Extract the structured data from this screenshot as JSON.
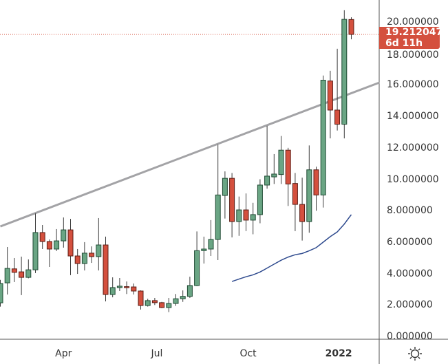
{
  "chart_data": {
    "type": "candlestick",
    "title": "",
    "y_axis": {
      "ticks": [
        "20.000000",
        "18.000000",
        "16.000000",
        "14.000000",
        "12.000000",
        "10.000000",
        "8.000000",
        "6.000000",
        "4.000000",
        "2.000000",
        "0.000000"
      ],
      "tick_values": [
        20,
        18,
        16,
        14,
        12,
        10,
        8,
        6,
        4,
        2,
        0
      ],
      "range": [
        0,
        20.2
      ]
    },
    "x_axis": {
      "labels": [
        {
          "text": "Apr",
          "index": 9
        },
        {
          "text": "Jul",
          "index": 22.3
        },
        {
          "text": "Oct",
          "index": 35.3
        },
        {
          "text": "2022",
          "index": 48.2
        }
      ]
    },
    "candles": [
      {
        "o": 2.14,
        "h": 3.6,
        "l": 1.9,
        "c": 3.37
      },
      {
        "o": 3.41,
        "h": 5.69,
        "l": 2.67,
        "c": 4.33
      },
      {
        "o": 4.3,
        "h": 4.99,
        "l": 3.46,
        "c": 4.08
      },
      {
        "o": 4.11,
        "h": 5.08,
        "l": 2.63,
        "c": 3.76
      },
      {
        "o": 3.76,
        "h": 4.9,
        "l": 3.7,
        "c": 4.24
      },
      {
        "o": 4.24,
        "h": 7.83,
        "l": 4.03,
        "c": 6.61
      },
      {
        "o": 6.61,
        "h": 7.09,
        "l": 5.56,
        "c": 6.04
      },
      {
        "o": 6.04,
        "h": 6.17,
        "l": 4.42,
        "c": 5.56
      },
      {
        "o": 5.56,
        "h": 6.83,
        "l": 5.43,
        "c": 6.08
      },
      {
        "o": 6.08,
        "h": 7.57,
        "l": 5.65,
        "c": 6.78
      },
      {
        "o": 6.78,
        "h": 7.48,
        "l": 3.9,
        "c": 5.12
      },
      {
        "o": 5.12,
        "h": 5.56,
        "l": 3.98,
        "c": 4.64
      },
      {
        "o": 4.64,
        "h": 6.0,
        "l": 4.2,
        "c": 5.3
      },
      {
        "o": 5.3,
        "h": 5.73,
        "l": 4.68,
        "c": 5.08
      },
      {
        "o": 5.08,
        "h": 7.53,
        "l": 4.2,
        "c": 5.82
      },
      {
        "o": 5.82,
        "h": 6.35,
        "l": 2.23,
        "c": 2.67
      },
      {
        "o": 2.67,
        "h": 3.76,
        "l": 2.49,
        "c": 3.11
      },
      {
        "o": 3.11,
        "h": 3.72,
        "l": 2.89,
        "c": 3.2
      },
      {
        "o": 3.17,
        "h": 3.5,
        "l": 2.7,
        "c": 3.12
      },
      {
        "o": 3.15,
        "h": 3.37,
        "l": 2.67,
        "c": 2.89
      },
      {
        "o": 2.89,
        "h": 2.93,
        "l": 1.71,
        "c": 1.97
      },
      {
        "o": 1.97,
        "h": 2.4,
        "l": 1.9,
        "c": 2.28
      },
      {
        "o": 2.28,
        "h": 2.45,
        "l": 2.0,
        "c": 2.15
      },
      {
        "o": 2.15,
        "h": 2.2,
        "l": 1.8,
        "c": 1.84
      },
      {
        "o": 1.84,
        "h": 2.45,
        "l": 1.55,
        "c": 2.1
      },
      {
        "o": 2.1,
        "h": 2.7,
        "l": 1.95,
        "c": 2.4
      },
      {
        "o": 2.4,
        "h": 2.93,
        "l": 2.2,
        "c": 2.55
      },
      {
        "o": 2.55,
        "h": 3.8,
        "l": 2.45,
        "c": 3.24
      },
      {
        "o": 3.24,
        "h": 6.68,
        "l": 3.2,
        "c": 5.46
      },
      {
        "o": 5.46,
        "h": 6.35,
        "l": 4.64,
        "c": 5.56
      },
      {
        "o": 5.56,
        "h": 7.4,
        "l": 5.12,
        "c": 6.17
      },
      {
        "o": 6.17,
        "h": 12.2,
        "l": 4.86,
        "c": 9.0
      },
      {
        "o": 8.97,
        "h": 10.5,
        "l": 7.5,
        "c": 10.06
      },
      {
        "o": 10.06,
        "h": 10.4,
        "l": 6.3,
        "c": 7.31
      },
      {
        "o": 7.31,
        "h": 8.9,
        "l": 6.4,
        "c": 8.05
      },
      {
        "o": 8.05,
        "h": 9.1,
        "l": 6.7,
        "c": 7.4
      },
      {
        "o": 7.4,
        "h": 8.5,
        "l": 6.5,
        "c": 7.75
      },
      {
        "o": 7.75,
        "h": 10.0,
        "l": 7.2,
        "c": 9.63
      },
      {
        "o": 9.63,
        "h": 13.4,
        "l": 9.4,
        "c": 10.2
      },
      {
        "o": 10.15,
        "h": 11.6,
        "l": 9.7,
        "c": 10.33
      },
      {
        "o": 10.3,
        "h": 12.75,
        "l": 9.7,
        "c": 11.85
      },
      {
        "o": 11.85,
        "h": 12.0,
        "l": 8.3,
        "c": 9.7
      },
      {
        "o": 9.73,
        "h": 10.4,
        "l": 6.7,
        "c": 8.4
      },
      {
        "o": 8.4,
        "h": 10.1,
        "l": 6.1,
        "c": 7.31
      },
      {
        "o": 7.31,
        "h": 12.15,
        "l": 6.6,
        "c": 10.6
      },
      {
        "o": 10.6,
        "h": 10.8,
        "l": 8.0,
        "c": 9.0
      },
      {
        "o": 9.0,
        "h": 16.6,
        "l": 8.2,
        "c": 16.3
      },
      {
        "o": 16.25,
        "h": 16.9,
        "l": 12.6,
        "c": 14.4
      },
      {
        "o": 14.4,
        "h": 18.3,
        "l": 13.1,
        "c": 13.5
      },
      {
        "o": 13.5,
        "h": 20.75,
        "l": 12.6,
        "c": 20.17
      },
      {
        "o": 20.16,
        "h": 20.3,
        "l": 18.9,
        "c": 19.212047
      }
    ],
    "moving_average": {
      "start_index": 33,
      "values": [
        3.5,
        3.65,
        3.8,
        3.92,
        4.1,
        4.35,
        4.6,
        4.85,
        5.05,
        5.2,
        5.28,
        5.45,
        5.65,
        6.0,
        6.35,
        6.65,
        7.15,
        7.75
      ]
    },
    "trendline": {
      "from": {
        "index": 0,
        "value": 7.0
      },
      "to": {
        "index": 54,
        "value": 16.15
      }
    },
    "last_price": {
      "value": "19.212047",
      "countdown": "6d 11h"
    },
    "colors": {
      "up": "#6aa584",
      "up_border": "#1f4a33",
      "down": "#d4503e",
      "down_border": "#5a1c14",
      "wick": "#3a3a3a",
      "ma": "#2e4a8e",
      "trendline": "#a3a3a6",
      "price_line": "#d4503e"
    }
  }
}
